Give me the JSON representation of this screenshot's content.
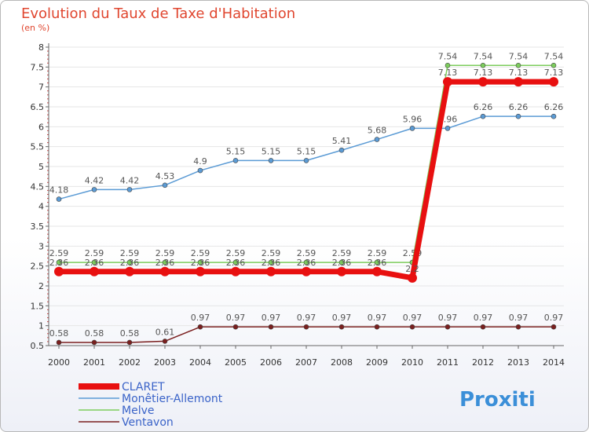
{
  "chart_data": {
    "type": "line",
    "title": "Evolution du Taux de Taxe d'Habitation",
    "subtitle": "(en %)",
    "ylim": [
      0.5,
      8
    ],
    "y_ticks": [
      "0.5",
      "1",
      "1.5",
      "2",
      "2.5",
      "3",
      "3.5",
      "4",
      "4.5",
      "5",
      "5.5",
      "6",
      "6.5",
      "7",
      "7.5",
      "8"
    ],
    "x": [
      "2000",
      "2001",
      "2002",
      "2003",
      "2004",
      "2005",
      "2006",
      "2007",
      "2008",
      "2009",
      "2010",
      "2011",
      "2012",
      "2013",
      "2014"
    ],
    "series": [
      {
        "name": "Ventavon",
        "color": "#7a1f1f",
        "values": [
          0.58,
          0.58,
          0.58,
          0.61,
          0.97,
          0.97,
          0.97,
          0.97,
          0.97,
          0.97,
          0.97,
          0.97,
          0.97,
          0.97,
          0.97
        ],
        "labels": [
          "0.58",
          "0.58",
          "0.58",
          "0.61",
          "0.97",
          "0.97",
          "0.97",
          "0.97",
          "0.97",
          "0.97",
          "0.97",
          "0.97",
          "0.97",
          "0.97",
          "0.97"
        ]
      },
      {
        "name": "Monêtier-Allemont",
        "color": "#5b9bd5",
        "values": [
          4.18,
          4.42,
          4.42,
          4.53,
          4.9,
          5.15,
          5.15,
          5.15,
          5.41,
          5.68,
          5.96,
          5.96,
          6.26,
          6.26,
          6.26
        ],
        "labels": [
          "4.18",
          "4.42",
          "4.42",
          "4.53",
          "4.9",
          "5.15",
          "5.15",
          "5.15",
          "5.41",
          "5.68",
          "5.96",
          "5.96",
          "6.26",
          "6.26",
          "6.26"
        ]
      },
      {
        "name": "Melve",
        "color": "#7ccd5c",
        "values": [
          2.59,
          2.59,
          2.59,
          2.59,
          2.59,
          2.59,
          2.59,
          2.59,
          2.59,
          2.59,
          2.59,
          7.54,
          7.54,
          7.54,
          7.54
        ],
        "labels": [
          "2.59",
          "2.59",
          "2.59",
          "2.59",
          "2.59",
          "2.59",
          "2.59",
          "2.59",
          "2.59",
          "2.59",
          "2.59",
          "7.54",
          "7.54",
          "7.54",
          "7.54"
        ]
      },
      {
        "name": "CLARET",
        "color": "#e81010",
        "values": [
          2.36,
          2.36,
          2.36,
          2.36,
          2.36,
          2.36,
          2.36,
          2.36,
          2.36,
          2.36,
          2.2,
          7.13,
          7.13,
          7.13,
          7.13
        ],
        "labels": [
          "2.36",
          "2.36",
          "2.36",
          "2.36",
          "2.36",
          "2.36",
          "2.36",
          "2.36",
          "2.36",
          "2.36",
          "2.2",
          "7.13",
          "7.13",
          "7.13",
          "7.13"
        ]
      }
    ],
    "legend": [
      "CLARET",
      "Monêtier-Allemont",
      "Melve",
      "Ventavon"
    ]
  },
  "logo": {
    "text": "Proxiti"
  }
}
